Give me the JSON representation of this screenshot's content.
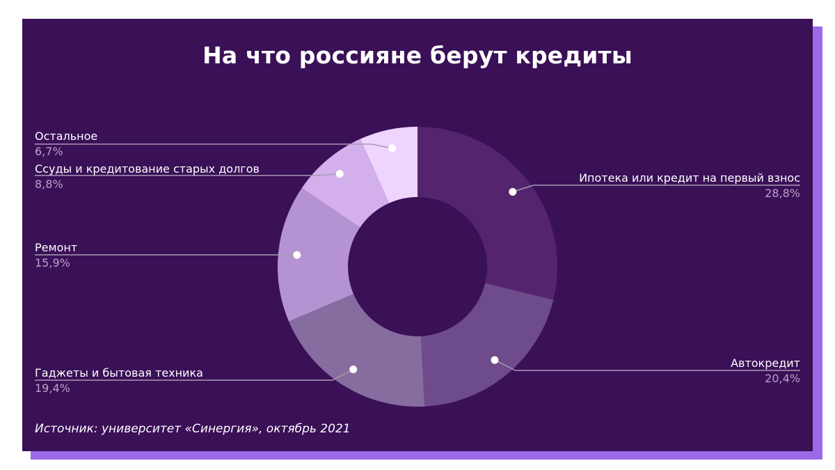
{
  "title": "На что россияне берут кредиты",
  "source": "Источник:  университет «Синергия», октябрь 2021",
  "colors": {
    "background": "#3a1057",
    "shadow": "#9b6ae8",
    "leader": "#a89ab5",
    "value_text": "#b9a3c9"
  },
  "chart_data": {
    "type": "pie",
    "donut": true,
    "title": "На что россияне берут кредиты",
    "slices": [
      {
        "label": "Ипотека или кредит на первый взнос",
        "value": 28.8,
        "value_label": "28,8%",
        "color": "#55246f"
      },
      {
        "label": "Автокредит",
        "value": 20.4,
        "value_label": "20,4%",
        "color": "#6e4b8a"
      },
      {
        "label": "Гаджеты и бытовая техника",
        "value": 19.4,
        "value_label": "19,4%",
        "color": "#876c9f"
      },
      {
        "label": "Ремонт",
        "value": 15.9,
        "value_label": "15,9%",
        "color": "#b592d1"
      },
      {
        "label": "Ссуды и кредитование старых долгов",
        "value": 8.8,
        "value_label": "8,8%",
        "color": "#d3afec"
      },
      {
        "label": "Остальное",
        "value": 6.7,
        "value_label": "6,7%",
        "color": "#efd5fd"
      }
    ],
    "legend": "none",
    "labels_placement": "outside with leader lines"
  }
}
